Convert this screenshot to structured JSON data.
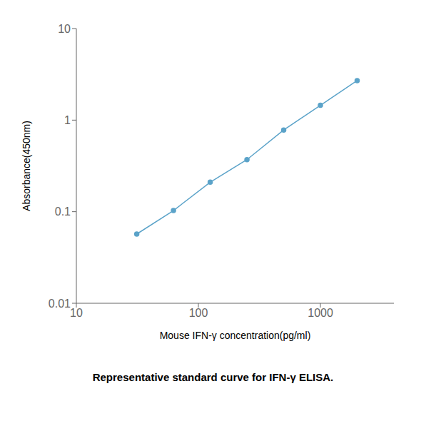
{
  "chart_data": {
    "type": "line",
    "caption": "Representative standard curve for IFN-γ ELISA.",
    "xlabel": "Mouse IFN-γ concentration(pg/ml)",
    "ylabel": "Absorbance(450nm)",
    "x": [
      31.25,
      62.5,
      125,
      250,
      500,
      1000,
      2000
    ],
    "values": [
      0.057,
      0.103,
      0.21,
      0.37,
      0.78,
      1.45,
      2.7
    ],
    "color": "#5BA3C9",
    "marker": "circle",
    "log": true,
    "xlim": [
      10,
      4000
    ],
    "ylim": [
      0.01,
      10
    ],
    "xticks": [
      10,
      100,
      1000
    ],
    "yticks": [
      0.01,
      0.1,
      1,
      10
    ],
    "grid": false
  }
}
